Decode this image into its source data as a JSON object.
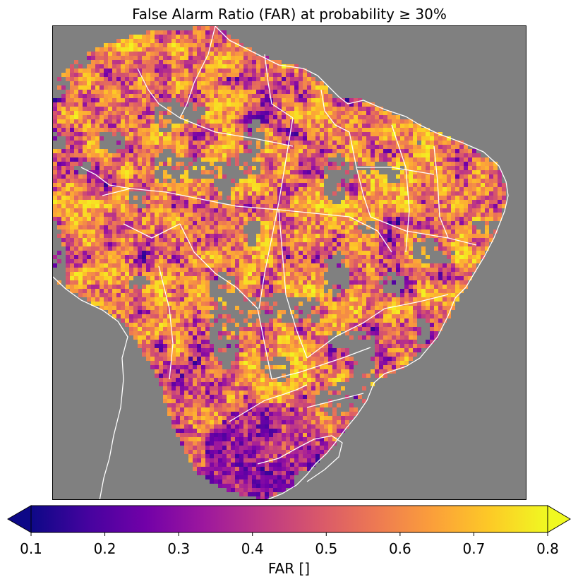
{
  "title": "False Alarm Ratio (FAR) at probability ≥ 30%",
  "map": {
    "background_color": "#808080",
    "border_color": "#ffffff",
    "colormap": "plasma",
    "field": "FAR"
  },
  "colorbar": {
    "label": "FAR []",
    "min": 0.1,
    "max": 0.8,
    "extend": "both",
    "ticks": [
      "0.1",
      "0.2",
      "0.3",
      "0.4",
      "0.5",
      "0.6",
      "0.7",
      "0.8"
    ],
    "stops": [
      "#0d0887",
      "#46039f",
      "#7201a8",
      "#9c179e",
      "#bd3786",
      "#d8576b",
      "#ed7953",
      "#fb9f3a",
      "#fdca26",
      "#f0f921"
    ]
  }
}
